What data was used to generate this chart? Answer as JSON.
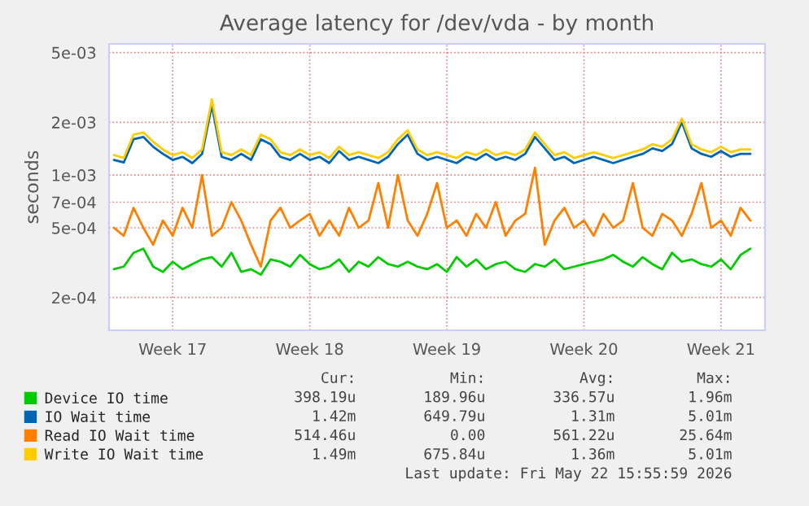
{
  "chart_data": {
    "type": "line",
    "title": "Average latency for /dev/vda - by month",
    "ylabel": "seconds",
    "categories": [
      null,
      null,
      null,
      null,
      null,
      null,
      "Week 17",
      null,
      null,
      null,
      null,
      null,
      null,
      null,
      null,
      null,
      null,
      null,
      null,
      null,
      "Week 18",
      null,
      null,
      null,
      null,
      null,
      null,
      null,
      null,
      null,
      null,
      null,
      null,
      null,
      "Week 19",
      null,
      null,
      null,
      null,
      null,
      null,
      null,
      null,
      null,
      null,
      null,
      null,
      null,
      "Week 20",
      null,
      null,
      null,
      null,
      null,
      null,
      null,
      null,
      null,
      null,
      null,
      null,
      null,
      "Week 21",
      null,
      null,
      null
    ],
    "series": [
      {
        "name": "Device IO time",
        "color": "#00cc00",
        "values": [
          0.00029,
          0.0003,
          0.00036,
          0.00038,
          0.0003,
          0.00028,
          0.00032,
          0.00029,
          0.00031,
          0.00033,
          0.00034,
          0.0003,
          0.00036,
          0.00028,
          0.00029,
          0.00027,
          0.00033,
          0.00032,
          0.0003,
          0.00035,
          0.00031,
          0.00029,
          0.0003,
          0.00033,
          0.00028,
          0.00032,
          0.0003,
          0.00034,
          0.00031,
          0.0003,
          0.00032,
          0.0003,
          0.00029,
          0.00031,
          0.00028,
          0.00034,
          0.0003,
          0.00033,
          0.00029,
          0.00031,
          0.00032,
          0.00029,
          0.00028,
          0.00031,
          0.0003,
          0.00033,
          0.00029,
          0.0003,
          0.00031,
          0.00032,
          0.00033,
          0.00035,
          0.00032,
          0.0003,
          0.00034,
          0.00031,
          0.00029,
          0.00036,
          0.00032,
          0.00033,
          0.00031,
          0.0003,
          0.00033,
          0.00029,
          0.00035,
          0.00038
        ]
      },
      {
        "name": "IO Wait time",
        "color": "#0066b3",
        "values": [
          0.00122,
          0.00118,
          0.0016,
          0.00165,
          0.00145,
          0.00132,
          0.00122,
          0.00127,
          0.00117,
          0.00132,
          0.0025,
          0.00127,
          0.00122,
          0.00132,
          0.00122,
          0.0016,
          0.0015,
          0.00127,
          0.00122,
          0.00132,
          0.00122,
          0.00127,
          0.00117,
          0.00137,
          0.00122,
          0.00127,
          0.00122,
          0.00117,
          0.00127,
          0.0015,
          0.0017,
          0.00132,
          0.00122,
          0.00127,
          0.00122,
          0.00117,
          0.00127,
          0.00122,
          0.00132,
          0.00122,
          0.00127,
          0.00122,
          0.00132,
          0.00165,
          0.00142,
          0.00122,
          0.00127,
          0.00117,
          0.00122,
          0.00127,
          0.00122,
          0.00117,
          0.00122,
          0.00127,
          0.00132,
          0.00142,
          0.00137,
          0.0015,
          0.002,
          0.00142,
          0.00132,
          0.00127,
          0.00137,
          0.00127,
          0.00132,
          0.00132
        ]
      },
      {
        "name": "Read IO Wait time",
        "color": "#ff8000",
        "values": [
          0.0005,
          0.00045,
          0.00065,
          0.0005,
          0.0004,
          0.00055,
          0.00045,
          0.00065,
          0.0005,
          0.001,
          0.00045,
          0.0005,
          0.0007,
          0.00055,
          0.0004,
          0.0003,
          0.00055,
          0.00065,
          0.0005,
          0.00055,
          0.0006,
          0.00045,
          0.00055,
          0.00045,
          0.00065,
          0.0005,
          0.00055,
          0.0009,
          0.0005,
          0.001,
          0.00055,
          0.00045,
          0.0006,
          0.0009,
          0.0005,
          0.00055,
          0.00045,
          0.0006,
          0.0005,
          0.0007,
          0.00045,
          0.00055,
          0.0006,
          0.0011,
          0.0004,
          0.00055,
          0.00065,
          0.0005,
          0.00055,
          0.00045,
          0.0006,
          0.0005,
          0.00055,
          0.0009,
          0.0005,
          0.00045,
          0.0006,
          0.00055,
          0.00045,
          0.0006,
          0.0009,
          0.0005,
          0.00055,
          0.00045,
          0.00065,
          0.00055
        ]
      },
      {
        "name": "Write IO Wait time",
        "color": "#ffcc00",
        "values": [
          0.0013,
          0.00125,
          0.0017,
          0.00175,
          0.00155,
          0.0014,
          0.0013,
          0.00135,
          0.00125,
          0.0014,
          0.0027,
          0.00135,
          0.0013,
          0.0014,
          0.0013,
          0.0017,
          0.0016,
          0.00135,
          0.0013,
          0.0014,
          0.0013,
          0.00135,
          0.00125,
          0.00145,
          0.0013,
          0.00135,
          0.0013,
          0.00125,
          0.00135,
          0.0016,
          0.0018,
          0.0014,
          0.0013,
          0.00135,
          0.0013,
          0.00125,
          0.00135,
          0.0013,
          0.0014,
          0.0013,
          0.00135,
          0.0013,
          0.0014,
          0.00175,
          0.0015,
          0.0013,
          0.00135,
          0.00125,
          0.0013,
          0.00135,
          0.0013,
          0.00125,
          0.0013,
          0.00135,
          0.0014,
          0.0015,
          0.00145,
          0.0016,
          0.0021,
          0.0015,
          0.0014,
          0.00135,
          0.00145,
          0.00135,
          0.0014,
          0.0014
        ]
      }
    ],
    "log": true,
    "ylim": [
      0.00013,
      0.0056
    ],
    "yticks": [
      {
        "value": 0.0002,
        "label": "2e-04"
      },
      {
        "value": 0.0005,
        "label": "5e-04"
      },
      {
        "value": 0.0007,
        "label": "7e-04"
      },
      {
        "value": 0.001,
        "label": "1e-03"
      },
      {
        "value": 0.002,
        "label": "2e-03"
      },
      {
        "value": 0.005,
        "label": "5e-03"
      }
    ],
    "grid": true,
    "legend": "bottom left",
    "line_style": "solid",
    "annotations": [
      "Cur:",
      "Min:",
      "Avg:",
      "Max:",
      "398.19u",
      "189.96u",
      "336.57u",
      "1.96m",
      "1.42m",
      "649.79u",
      "1.31m",
      "5.01m",
      "514.46u",
      "0.00",
      "561.22u",
      "25.64m",
      "1.49m",
      "675.84u",
      "1.36m",
      "5.01m",
      "Last update: Fri May 22 15:55:59 2026"
    ]
  }
}
